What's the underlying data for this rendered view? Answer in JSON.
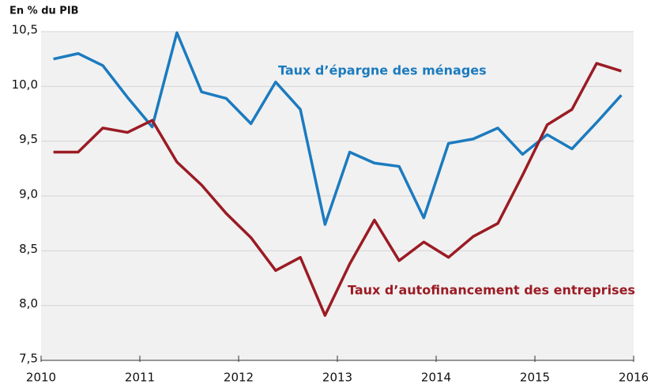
{
  "chart_data": {
    "type": "line",
    "title": "En % du PIB",
    "x": [
      2010.125,
      2010.375,
      2010.625,
      2010.875,
      2011.125,
      2011.375,
      2011.625,
      2011.875,
      2012.125,
      2012.375,
      2012.625,
      2012.875,
      2013.125,
      2013.375,
      2013.625,
      2013.875,
      2014.125,
      2014.375,
      2014.625,
      2014.875,
      2015.125,
      2015.375,
      2015.625,
      2015.875
    ],
    "series": [
      {
        "name": "Taux d’épargne des ménages",
        "color": "#1b7bbf",
        "values": [
          10.25,
          10.3,
          10.19,
          9.9,
          9.63,
          10.49,
          9.95,
          9.89,
          9.66,
          10.04,
          9.79,
          8.74,
          9.4,
          9.3,
          9.27,
          8.8,
          9.48,
          9.52,
          9.62,
          9.38,
          9.56,
          9.43,
          9.67,
          9.92
        ]
      },
      {
        "name": "Taux d’autofinancement des entreprises",
        "color": "#9b1b24",
        "values": [
          9.4,
          9.4,
          9.62,
          9.58,
          9.69,
          9.31,
          9.1,
          8.84,
          8.62,
          8.32,
          8.44,
          7.91,
          8.38,
          8.78,
          8.41,
          8.58,
          8.44,
          8.63,
          8.75,
          9.19,
          9.65,
          9.79,
          10.21,
          10.14
        ]
      }
    ],
    "xlim": [
      2010,
      2016
    ],
    "xticks": [
      2010,
      2011,
      2012,
      2013,
      2014,
      2015,
      2016
    ],
    "ylim": [
      7.5,
      10.5
    ],
    "yticks": [
      {
        "value": 7.5,
        "label": "7,5"
      },
      {
        "value": 8,
        "label": "8,0"
      },
      {
        "value": 8.5,
        "label": "8,5"
      },
      {
        "value": 9,
        "label": "9,0"
      },
      {
        "value": 9.5,
        "label": "9,5"
      },
      {
        "value": 10,
        "label": "10,0"
      },
      {
        "value": 10.5,
        "label": "10,5"
      }
    ],
    "grid": true
  }
}
